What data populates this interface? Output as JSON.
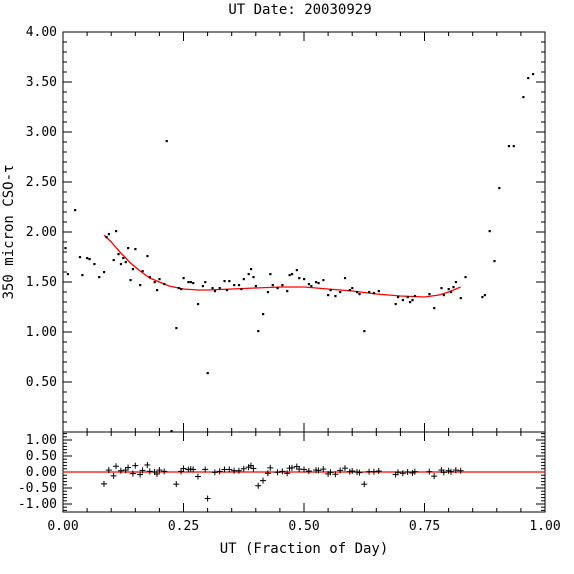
{
  "chart_data": [
    {
      "type": "scatter",
      "panel": "main",
      "title": "UT Date: 20030929",
      "ylabel": "350 micron CSO-τ",
      "xlim": [
        0,
        1
      ],
      "ylim": [
        0,
        4
      ],
      "xticks": [
        "0.00",
        "0.25",
        "0.50",
        "0.75",
        "1.00"
      ],
      "yticks": [
        "0.50",
        "1.00",
        "1.50",
        "2.00",
        "2.50",
        "3.00",
        "3.50",
        "4.00"
      ],
      "colors": {
        "points": "#000000",
        "fit": "#ff0000"
      },
      "series": [
        {
          "kind": "points",
          "points": [
            [
              0.005,
              1.84
            ],
            [
              0.01,
              1.58
            ],
            [
              0.025,
              2.22
            ],
            [
              0.035,
              1.75
            ],
            [
              0.04,
              1.57
            ],
            [
              0.05,
              1.74
            ],
            [
              0.055,
              1.73
            ],
            [
              0.065,
              1.68
            ],
            [
              0.075,
              1.55
            ],
            [
              0.085,
              1.6
            ],
            [
              0.09,
              1.95
            ],
            [
              0.095,
              1.98
            ],
            [
              0.105,
              1.72
            ],
            [
              0.11,
              2.01
            ],
            [
              0.115,
              1.78
            ],
            [
              0.12,
              1.68
            ],
            [
              0.125,
              1.74
            ],
            [
              0.13,
              1.7
            ],
            [
              0.135,
              1.84
            ],
            [
              0.14,
              1.52
            ],
            [
              0.145,
              1.63
            ],
            [
              0.15,
              1.83
            ],
            [
              0.16,
              1.47
            ],
            [
              0.165,
              1.61
            ],
            [
              0.175,
              1.76
            ],
            [
              0.18,
              1.55
            ],
            [
              0.19,
              1.5
            ],
            [
              0.195,
              1.42
            ],
            [
              0.2,
              1.53
            ],
            [
              0.21,
              1.48
            ],
            [
              0.215,
              2.91
            ],
            [
              0.225,
              0.01
            ],
            [
              0.235,
              1.04
            ],
            [
              0.24,
              1.44
            ],
            [
              0.245,
              1.43
            ],
            [
              0.25,
              1.54
            ],
            [
              0.26,
              1.5
            ],
            [
              0.265,
              1.5
            ],
            [
              0.27,
              1.49
            ],
            [
              0.28,
              1.28
            ],
            [
              0.29,
              1.46
            ],
            [
              0.295,
              1.5
            ],
            [
              0.3,
              0.59
            ],
            [
              0.31,
              1.44
            ],
            [
              0.315,
              1.41
            ],
            [
              0.325,
              1.44
            ],
            [
              0.335,
              1.51
            ],
            [
              0.34,
              1.42
            ],
            [
              0.345,
              1.51
            ],
            [
              0.355,
              1.47
            ],
            [
              0.365,
              1.47
            ],
            [
              0.37,
              1.43
            ],
            [
              0.375,
              1.53
            ],
            [
              0.385,
              1.58
            ],
            [
              0.39,
              1.63
            ],
            [
              0.395,
              1.55
            ],
            [
              0.4,
              1.46
            ],
            [
              0.405,
              1.01
            ],
            [
              0.415,
              1.18
            ],
            [
              0.425,
              1.4
            ],
            [
              0.43,
              1.58
            ],
            [
              0.435,
              1.47
            ],
            [
              0.445,
              1.44
            ],
            [
              0.455,
              1.47
            ],
            [
              0.465,
              1.41
            ],
            [
              0.47,
              1.57
            ],
            [
              0.475,
              1.58
            ],
            [
              0.485,
              1.62
            ],
            [
              0.49,
              1.54
            ],
            [
              0.5,
              1.53
            ],
            [
              0.51,
              1.48
            ],
            [
              0.515,
              1.46
            ],
            [
              0.525,
              1.5
            ],
            [
              0.53,
              1.49
            ],
            [
              0.54,
              1.52
            ],
            [
              0.55,
              1.37
            ],
            [
              0.555,
              1.42
            ],
            [
              0.565,
              1.36
            ],
            [
              0.575,
              1.4
            ],
            [
              0.585,
              1.54
            ],
            [
              0.595,
              1.42
            ],
            [
              0.6,
              1.44
            ],
            [
              0.61,
              1.4
            ],
            [
              0.615,
              1.38
            ],
            [
              0.625,
              1.01
            ],
            [
              0.635,
              1.4
            ],
            [
              0.645,
              1.39
            ],
            [
              0.655,
              1.41
            ],
            [
              0.69,
              1.28
            ],
            [
              0.695,
              1.35
            ],
            [
              0.705,
              1.32
            ],
            [
              0.715,
              1.35
            ],
            [
              0.72,
              1.3
            ],
            [
              0.725,
              1.32
            ],
            [
              0.73,
              1.36
            ],
            [
              0.76,
              1.38
            ],
            [
              0.77,
              1.24
            ],
            [
              0.785,
              1.44
            ],
            [
              0.79,
              1.37
            ],
            [
              0.8,
              1.43
            ],
            [
              0.805,
              1.4
            ],
            [
              0.81,
              1.45
            ],
            [
              0.815,
              1.5
            ],
            [
              0.825,
              1.34
            ],
            [
              0.835,
              1.55
            ],
            [
              0.87,
              1.35
            ],
            [
              0.875,
              1.37
            ],
            [
              0.885,
              2.01
            ],
            [
              0.895,
              1.71
            ],
            [
              0.905,
              2.44
            ],
            [
              0.925,
              2.86
            ],
            [
              0.935,
              2.86
            ],
            [
              0.955,
              3.35
            ],
            [
              0.965,
              3.54
            ],
            [
              0.975,
              3.58
            ]
          ]
        },
        {
          "kind": "fit",
          "points": [
            [
              0.085,
              1.97
            ],
            [
              0.1,
              1.9
            ],
            [
              0.12,
              1.79
            ],
            [
              0.14,
              1.69
            ],
            [
              0.16,
              1.61
            ],
            [
              0.18,
              1.54
            ],
            [
              0.2,
              1.5
            ],
            [
              0.22,
              1.46
            ],
            [
              0.25,
              1.43
            ],
            [
              0.28,
              1.42
            ],
            [
              0.3,
              1.42
            ],
            [
              0.35,
              1.43
            ],
            [
              0.4,
              1.44
            ],
            [
              0.45,
              1.45
            ],
            [
              0.5,
              1.45
            ],
            [
              0.55,
              1.43
            ],
            [
              0.6,
              1.41
            ],
            [
              0.65,
              1.38
            ],
            [
              0.7,
              1.36
            ],
            [
              0.75,
              1.35
            ],
            [
              0.78,
              1.37
            ],
            [
              0.8,
              1.4
            ],
            [
              0.825,
              1.45
            ]
          ]
        }
      ]
    },
    {
      "type": "scatter",
      "panel": "residuals",
      "xlabel": "UT (Fraction of Day)",
      "xlim": [
        0,
        1
      ],
      "ylim": [
        -1.25,
        1.25
      ],
      "xticks": [
        "0.00",
        "0.25",
        "0.50",
        "0.75",
        "1.00"
      ],
      "yticks": [
        "1.00",
        "0.50",
        "0.00",
        "-0.50",
        "-1.00"
      ],
      "colors": {
        "points": "#000000",
        "zero_line": "#ff0000"
      },
      "series": [
        {
          "kind": "residuals",
          "points": [
            [
              0.085,
              -0.37
            ],
            [
              0.095,
              0.06
            ],
            [
              0.105,
              -0.12
            ],
            [
              0.11,
              0.18
            ],
            [
              0.12,
              0.04
            ],
            [
              0.13,
              0.06
            ],
            [
              0.135,
              0.14
            ],
            [
              0.145,
              -0.05
            ],
            [
              0.15,
              0.2
            ],
            [
              0.16,
              -0.08
            ],
            [
              0.165,
              0.05
            ],
            [
              0.175,
              0.22
            ],
            [
              0.18,
              0.02
            ],
            [
              0.19,
              0.0
            ],
            [
              0.195,
              -0.06
            ],
            [
              0.2,
              0.06
            ],
            [
              0.21,
              0.02
            ],
            [
              0.235,
              -0.38
            ],
            [
              0.245,
              0.02
            ],
            [
              0.25,
              0.11
            ],
            [
              0.26,
              0.08
            ],
            [
              0.265,
              0.09
            ],
            [
              0.27,
              0.08
            ],
            [
              0.28,
              -0.14
            ],
            [
              0.295,
              0.08
            ],
            [
              0.3,
              -0.83
            ],
            [
              0.315,
              -0.01
            ],
            [
              0.325,
              0.02
            ],
            [
              0.335,
              0.08
            ],
            [
              0.345,
              0.08
            ],
            [
              0.355,
              0.04
            ],
            [
              0.365,
              0.04
            ],
            [
              0.375,
              0.1
            ],
            [
              0.385,
              0.15
            ],
            [
              0.39,
              0.2
            ],
            [
              0.395,
              0.11
            ],
            [
              0.405,
              -0.43
            ],
            [
              0.415,
              -0.27
            ],
            [
              0.425,
              -0.04
            ],
            [
              0.43,
              0.13
            ],
            [
              0.445,
              -0.01
            ],
            [
              0.455,
              0.02
            ],
            [
              0.465,
              -0.04
            ],
            [
              0.47,
              0.12
            ],
            [
              0.475,
              0.13
            ],
            [
              0.485,
              0.17
            ],
            [
              0.49,
              0.09
            ],
            [
              0.5,
              0.08
            ],
            [
              0.51,
              0.03
            ],
            [
              0.525,
              0.06
            ],
            [
              0.53,
              0.05
            ],
            [
              0.54,
              0.09
            ],
            [
              0.55,
              -0.06
            ],
            [
              0.555,
              -0.01
            ],
            [
              0.565,
              -0.07
            ],
            [
              0.575,
              0.05
            ],
            [
              0.585,
              0.12
            ],
            [
              0.595,
              0.01
            ],
            [
              0.6,
              0.03
            ],
            [
              0.61,
              0.0
            ],
            [
              0.615,
              -0.02
            ],
            [
              0.625,
              -0.38
            ],
            [
              0.635,
              0.01
            ],
            [
              0.645,
              0.01
            ],
            [
              0.655,
              0.03
            ],
            [
              0.69,
              -0.08
            ],
            [
              0.695,
              -0.01
            ],
            [
              0.705,
              -0.04
            ],
            [
              0.715,
              0.0
            ],
            [
              0.725,
              -0.03
            ],
            [
              0.73,
              0.01
            ],
            [
              0.76,
              0.01
            ],
            [
              0.77,
              -0.13
            ],
            [
              0.785,
              0.06
            ],
            [
              0.79,
              -0.01
            ],
            [
              0.8,
              0.04
            ],
            [
              0.805,
              0.01
            ],
            [
              0.815,
              0.06
            ],
            [
              0.825,
              0.04
            ]
          ]
        }
      ]
    }
  ]
}
